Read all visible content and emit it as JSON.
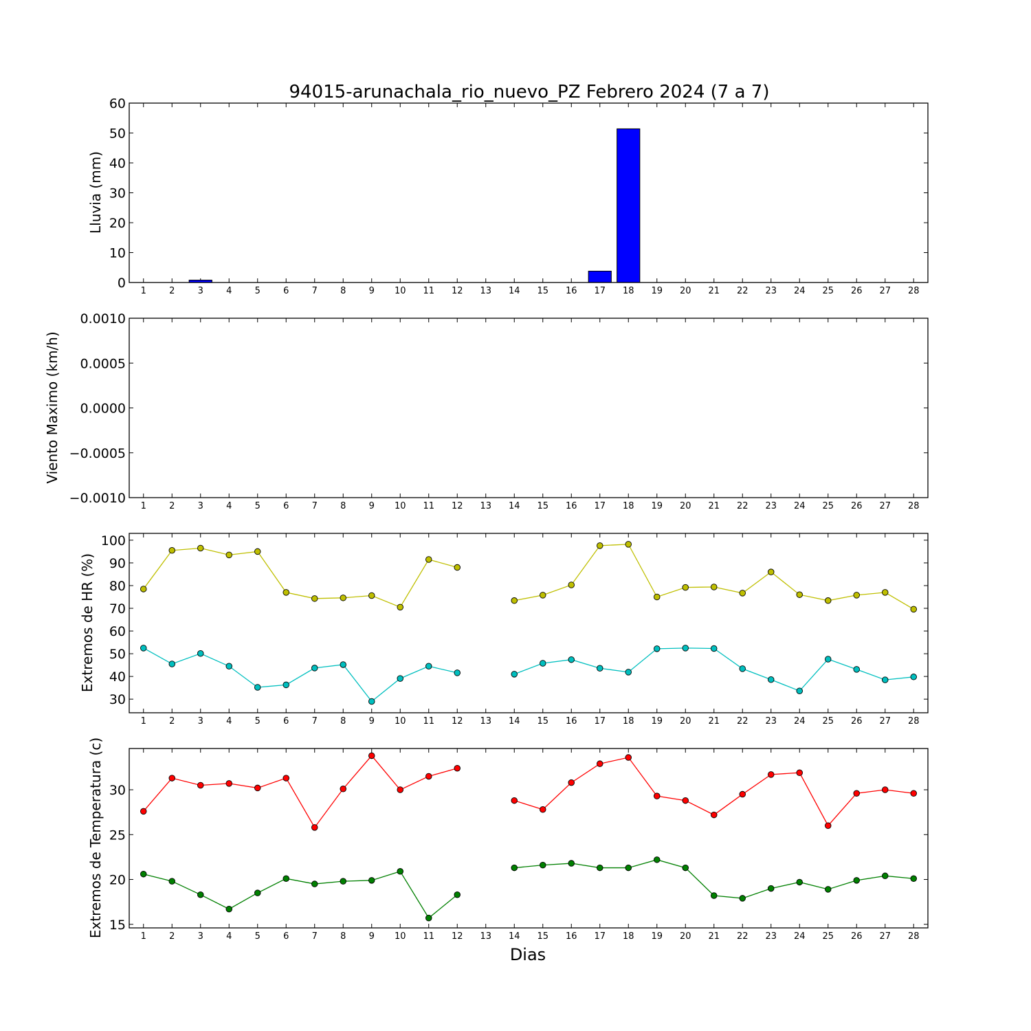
{
  "chart_data": [
    {
      "type": "bar",
      "title": "94015-arunachala_rio_nuevo_PZ Febrero 2024  (7 a 7)",
      "ylabel": "Lluvia (mm)",
      "xlabel": "",
      "ylim": [
        0,
        60
      ],
      "yticks": [
        "0",
        "10",
        "20",
        "30",
        "40",
        "50",
        "60"
      ],
      "x": [
        1,
        2,
        3,
        4,
        5,
        6,
        7,
        8,
        9,
        10,
        11,
        12,
        13,
        14,
        15,
        16,
        17,
        18,
        19,
        20,
        21,
        22,
        23,
        24,
        25,
        26,
        27,
        28
      ],
      "values": [
        0,
        0,
        0.8,
        0,
        0,
        0,
        0,
        0,
        0,
        0,
        0,
        0,
        0,
        0,
        0,
        0,
        3.8,
        51.4,
        0,
        0,
        0,
        0,
        0,
        0,
        0,
        0,
        0,
        0
      ],
      "color": "#0000ff"
    },
    {
      "type": "line",
      "title": "",
      "ylabel": "Viento Maximo (km/h)",
      "xlabel": "",
      "ylim": [
        -0.001,
        0.001
      ],
      "yticks": [
        "−0.0010",
        "−0.0005",
        "0.0000",
        "0.0005",
        "0.0010"
      ],
      "x": [
        1,
        2,
        3,
        4,
        5,
        6,
        7,
        8,
        9,
        10,
        11,
        12,
        13,
        14,
        15,
        16,
        17,
        18,
        19,
        20,
        21,
        22,
        23,
        24,
        25,
        26,
        27,
        28
      ],
      "series": []
    },
    {
      "type": "line",
      "title": "",
      "ylabel": "Extremos de HR (%)",
      "xlabel": "",
      "ylim": [
        24,
        103
      ],
      "yticks": [
        "30",
        "40",
        "50",
        "60",
        "70",
        "80",
        "90",
        "100"
      ],
      "x": [
        1,
        2,
        3,
        4,
        5,
        6,
        7,
        8,
        9,
        10,
        11,
        12,
        13,
        14,
        15,
        16,
        17,
        18,
        19,
        20,
        21,
        22,
        23,
        24,
        25,
        26,
        27,
        28
      ],
      "series": [
        {
          "color": "#bfbf00",
          "values": [
            78.5,
            95.5,
            96.5,
            93.5,
            95,
            77,
            74.3,
            74.6,
            75.6,
            70.5,
            91.5,
            88,
            null,
            73.4,
            75.8,
            80.3,
            97.6,
            98.2,
            75,
            79.2,
            79.4,
            76.7,
            86,
            76,
            73.4,
            75.8,
            77,
            69.6
          ]
        },
        {
          "color": "#00bfbf",
          "values": [
            52.5,
            45.5,
            50.1,
            44.5,
            35.2,
            36.3,
            43.7,
            45.2,
            29,
            39.1,
            44.5,
            41.6,
            null,
            41,
            45.8,
            47.4,
            43.6,
            41.9,
            52.2,
            52.5,
            52.3,
            43.4,
            38.6,
            33.6,
            47.6,
            43.1,
            38.5,
            39.8
          ]
        }
      ]
    },
    {
      "type": "line",
      "title": "",
      "ylabel": "Extremos de Temperatura (c)",
      "xlabel": "Dias",
      "ylim": [
        14.6,
        34.6
      ],
      "yticks": [
        "15",
        "20",
        "25",
        "30"
      ],
      "x": [
        1,
        2,
        3,
        4,
        5,
        6,
        7,
        8,
        9,
        10,
        11,
        12,
        13,
        14,
        15,
        16,
        17,
        18,
        19,
        20,
        21,
        22,
        23,
        24,
        25,
        26,
        27,
        28
      ],
      "series": [
        {
          "color": "#ff0000",
          "values": [
            27.6,
            31.3,
            30.5,
            30.7,
            30.2,
            31.3,
            25.8,
            30.1,
            33.8,
            30,
            31.5,
            32.4,
            null,
            28.8,
            27.8,
            30.8,
            32.9,
            33.6,
            29.3,
            28.8,
            27.2,
            29.5,
            31.7,
            31.9,
            26,
            29.6,
            30,
            29.6
          ]
        },
        {
          "color": "#008000",
          "values": [
            20.6,
            19.8,
            18.3,
            16.7,
            18.5,
            20.1,
            19.5,
            19.8,
            19.9,
            20.9,
            15.7,
            18.3,
            null,
            21.3,
            21.6,
            21.8,
            21.3,
            21.3,
            22.2,
            21.3,
            18.2,
            17.9,
            19,
            19.7,
            18.9,
            19.9,
            20.4,
            20.1
          ]
        }
      ]
    }
  ]
}
